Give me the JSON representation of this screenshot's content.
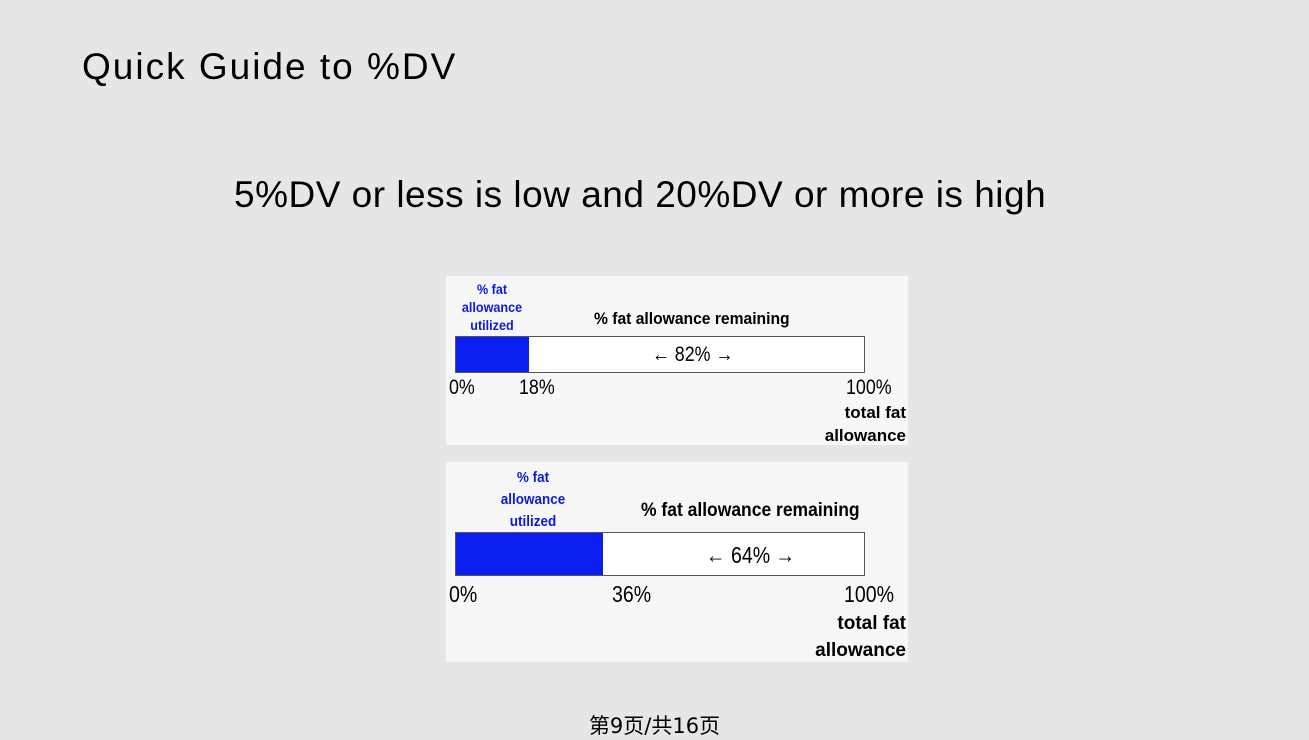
{
  "slide": {
    "title": "Quick Guide to %DV",
    "subtitle": "5%DV or less is low and 20%DV or more is high",
    "footer": "第9页/共16页"
  },
  "panels": [
    {
      "utilized_label_1": "% fat",
      "utilized_label_2": "allowance",
      "utilized_label_3": "utilized",
      "remaining_label": "% fat allowance remaining",
      "utilized_fraction": 0.18,
      "remaining_text": "← 82% →",
      "tick_start": "0%",
      "tick_utilized": "18%",
      "tick_end": "100%",
      "total_label_1": "total fat",
      "total_label_2": "allowance"
    },
    {
      "utilized_label_1": "% fat",
      "utilized_label_2": "allowance",
      "utilized_label_3": "utilized",
      "remaining_label": "% fat allowance remaining",
      "utilized_fraction": 0.36,
      "remaining_text": "← 64% →",
      "tick_start": "0%",
      "tick_utilized": "36%",
      "tick_end": "100%",
      "total_label_1": "total fat",
      "total_label_2": "allowance"
    }
  ],
  "colors": {
    "bar_fill": "#0a1ff0",
    "utilized_text": "#0a1be0",
    "background": "#e6e6e6"
  }
}
